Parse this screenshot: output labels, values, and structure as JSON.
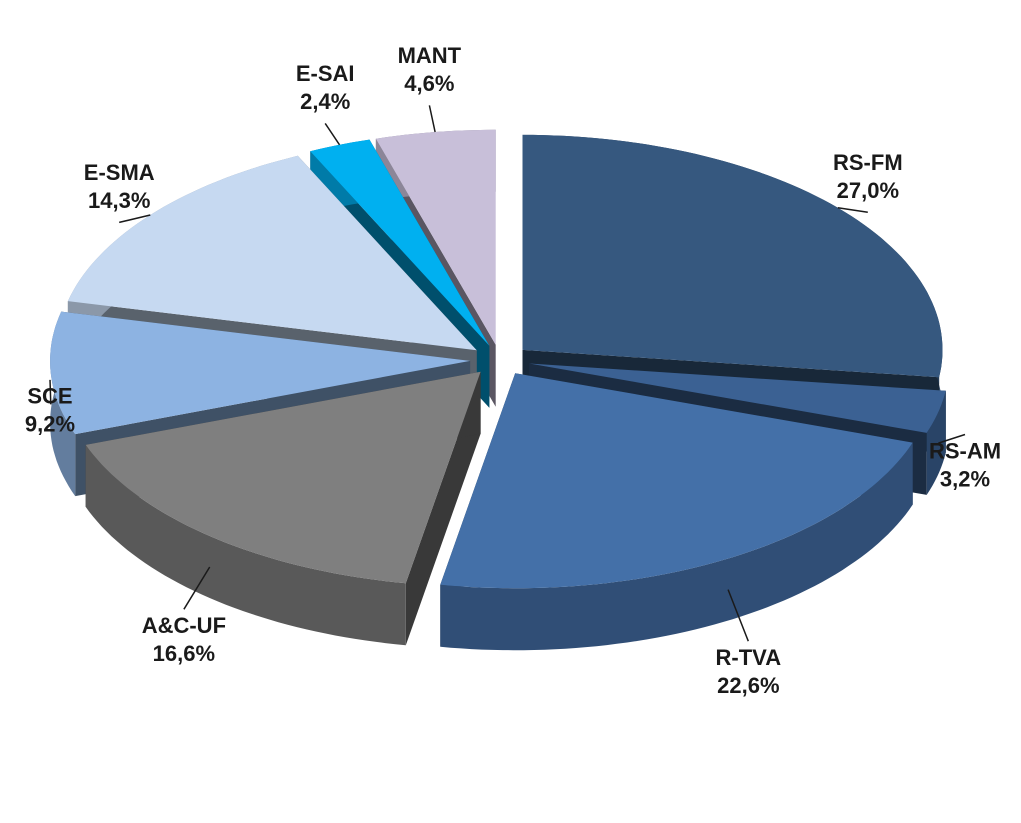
{
  "chart_data": {
    "type": "pie",
    "categories": [
      "RS-FM",
      "RS-AM",
      "R-TVA",
      "A&C-UF",
      "SCE",
      "E-SMA",
      "E-SAI",
      "MANT"
    ],
    "values": [
      27.0,
      3.2,
      22.6,
      16.6,
      9.2,
      14.3,
      2.4,
      4.6
    ],
    "value_labels": [
      "27,0%",
      "3,2%",
      "22,6%",
      "16,6%",
      "9,2%",
      "14,3%",
      "2,4%",
      "4,6%"
    ],
    "colors": [
      "#36587f",
      "#3b6193",
      "#4470a8",
      "#7f7f7f",
      "#8db3e2",
      "#c6d9f1",
      "#00b0f0",
      "#c8bfd9"
    ]
  }
}
